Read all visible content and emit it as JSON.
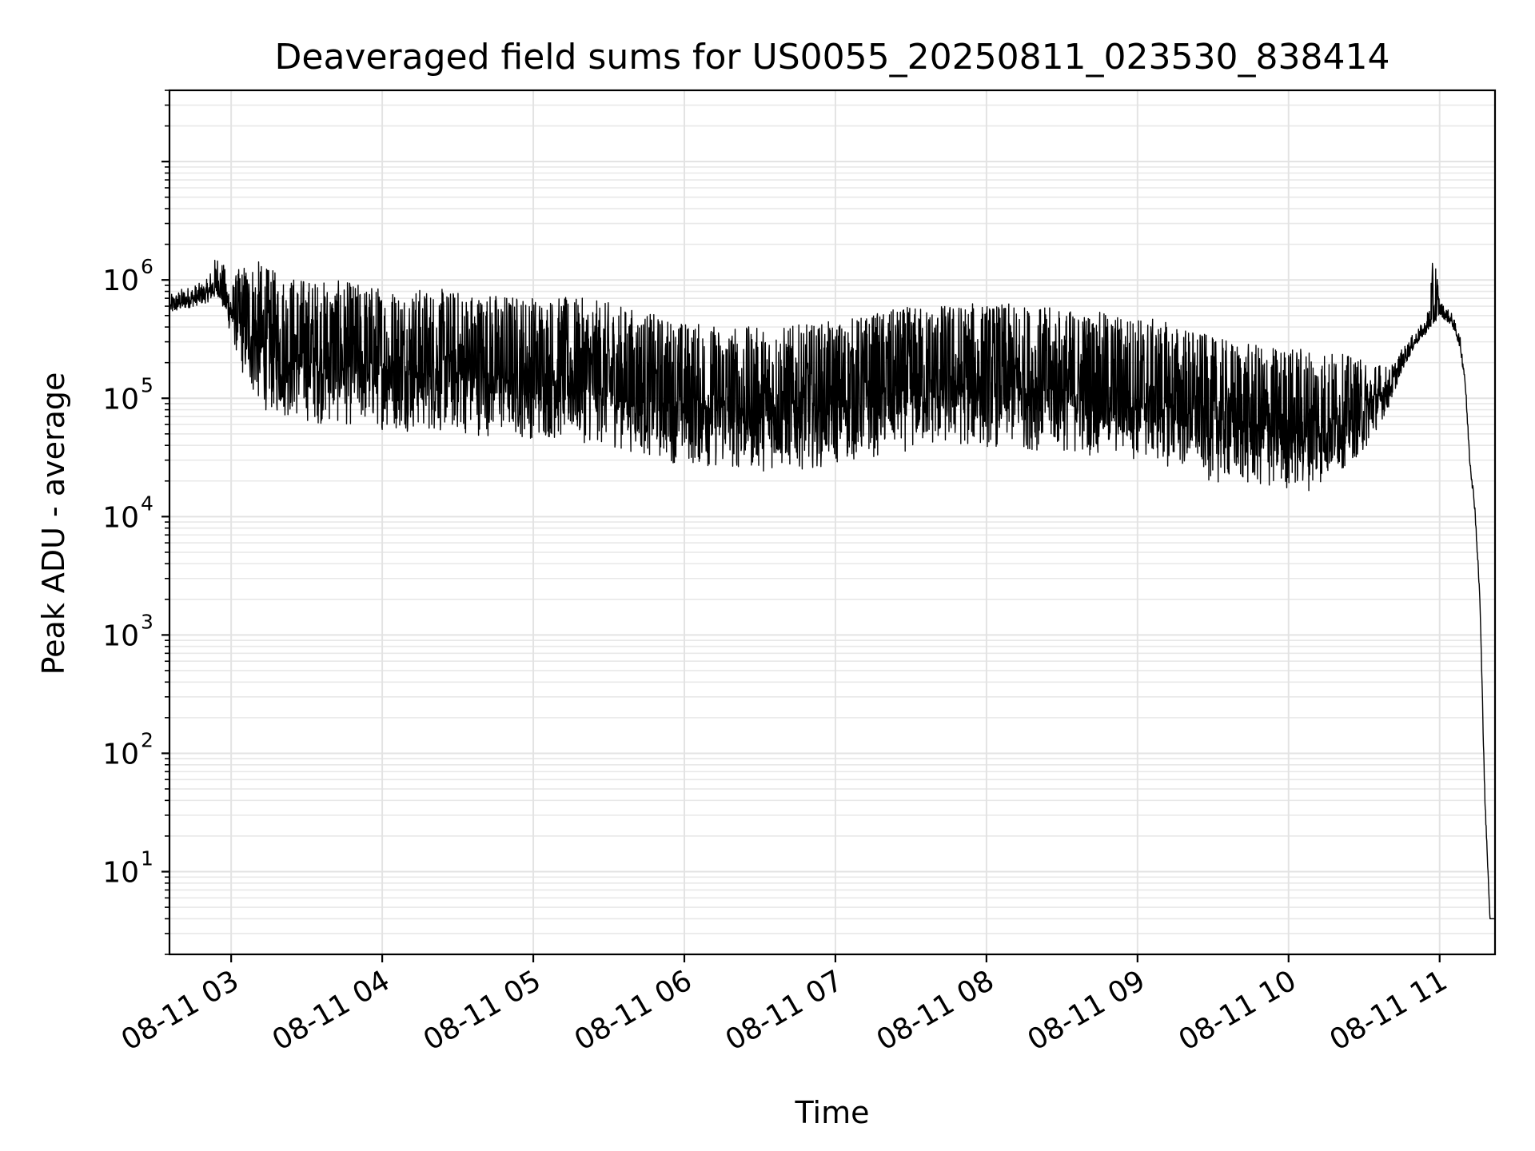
{
  "chart_data": {
    "type": "line",
    "title": "Deaveraged field sums for US0055_20250811_023530_838414",
    "xlabel": "Time",
    "ylabel": "Peak ADU - average",
    "yscale": "log",
    "ylim": [
      2,
      40000000
    ],
    "xlim": [
      "2025-08-11 02:35:30",
      "2025-08-11 11:22:00"
    ],
    "grid": true,
    "x_ticks": [
      "08-11 03",
      "08-11 04",
      "08-11 05",
      "08-11 06",
      "08-11 07",
      "08-11 08",
      "08-11 09",
      "08-11 10",
      "08-11 11"
    ],
    "y_ticks": [
      {
        "base": "10",
        "exp": "1"
      },
      {
        "base": "10",
        "exp": "2"
      },
      {
        "base": "10",
        "exp": "3"
      },
      {
        "base": "10",
        "exp": "4"
      },
      {
        "base": "10",
        "exp": "5"
      },
      {
        "base": "10",
        "exp": "6"
      }
    ],
    "line_color": "#000000",
    "series": [
      {
        "x": [
          "02:36",
          "02:40",
          "02:45",
          "02:50",
          "02:55",
          "03:00",
          "03:05",
          "03:10",
          "03:15",
          "03:20",
          "03:25",
          "03:30",
          "03:35",
          "03:40",
          "03:45",
          "03:50",
          "03:55",
          "04:00",
          "04:10",
          "04:20",
          "04:30",
          "04:40",
          "04:50",
          "05:00",
          "05:10",
          "05:20",
          "05:30",
          "05:40",
          "05:50",
          "06:00",
          "06:10",
          "06:20",
          "06:30",
          "06:40",
          "06:50",
          "07:00",
          "07:10",
          "07:20",
          "07:30",
          "07:40",
          "07:50",
          "08:00",
          "08:10",
          "08:20",
          "08:30",
          "08:40",
          "08:50",
          "09:00",
          "09:10",
          "09:20",
          "09:30",
          "09:40",
          "09:50",
          "10:00",
          "10:10",
          "10:20",
          "10:30",
          "10:40",
          "10:45",
          "10:50",
          "10:55",
          "10:58",
          "11:00",
          "11:05",
          "11:08",
          "11:10",
          "11:12",
          "11:14",
          "11:16",
          "11:18",
          "11:20",
          "11:22"
        ],
        "center": [
          600000,
          650000,
          700000,
          750000,
          900000,
          550000,
          400000,
          300000,
          250000,
          230000,
          220000,
          210000,
          200000,
          200000,
          195000,
          190000,
          185000,
          180000,
          175000,
          170000,
          165000,
          160000,
          155000,
          150000,
          145000,
          140000,
          130000,
          115000,
          100000,
          90000,
          85000,
          82000,
          80000,
          82000,
          85000,
          90000,
          100000,
          110000,
          120000,
          125000,
          128000,
          128000,
          125000,
          120000,
          115000,
          110000,
          105000,
          100000,
          90000,
          80000,
          65000,
          60000,
          55000,
          55000,
          55000,
          60000,
          70000,
          120000,
          200000,
          300000,
          400000,
          480000,
          560000,
          450000,
          300000,
          150000,
          30000,
          12000,
          2000,
          40,
          4,
          4
        ],
        "noise_low": [
          0.85,
          0.85,
          0.85,
          0.85,
          0.8,
          0.6,
          0.35,
          0.3,
          0.3,
          0.3,
          0.3,
          0.3,
          0.3,
          0.3,
          0.3,
          0.3,
          0.3,
          0.3,
          0.3,
          0.3,
          0.3,
          0.3,
          0.3,
          0.3,
          0.3,
          0.3,
          0.3,
          0.3,
          0.3,
          0.3,
          0.3,
          0.3,
          0.3,
          0.3,
          0.3,
          0.3,
          0.3,
          0.3,
          0.3,
          0.3,
          0.3,
          0.3,
          0.3,
          0.3,
          0.3,
          0.3,
          0.3,
          0.3,
          0.3,
          0.3,
          0.3,
          0.3,
          0.3,
          0.3,
          0.3,
          0.4,
          0.5,
          0.7,
          0.85,
          0.9,
          0.9,
          0.9,
          0.9,
          0.9,
          0.9,
          0.9,
          0.9,
          0.9,
          0.9,
          0.9,
          1,
          1
        ],
        "noise_high": [
          1.25,
          1.3,
          1.3,
          1.3,
          2.0,
          1.6,
          3.5,
          5.0,
          5.0,
          5.0,
          5.0,
          5.0,
          5.0,
          5.0,
          5.0,
          5.0,
          5.0,
          5.0,
          5.0,
          5.0,
          5.0,
          5.0,
          5.0,
          5.0,
          5.0,
          5.0,
          5.0,
          5.0,
          5.0,
          5.0,
          5.0,
          5.0,
          5.0,
          5.0,
          5.0,
          5.0,
          5.0,
          5.0,
          5.0,
          5.0,
          5.0,
          5.0,
          5.0,
          5.0,
          5.0,
          5.0,
          5.0,
          5.0,
          5.0,
          5.0,
          5.0,
          5.0,
          5.0,
          5.0,
          5.0,
          4.0,
          3.0,
          1.5,
          1.3,
          1.2,
          1.2,
          3.8,
          1.2,
          1.15,
          1.15,
          1.15,
          1.1,
          1.1,
          1.1,
          1.1,
          1,
          1
        ]
      }
    ]
  }
}
